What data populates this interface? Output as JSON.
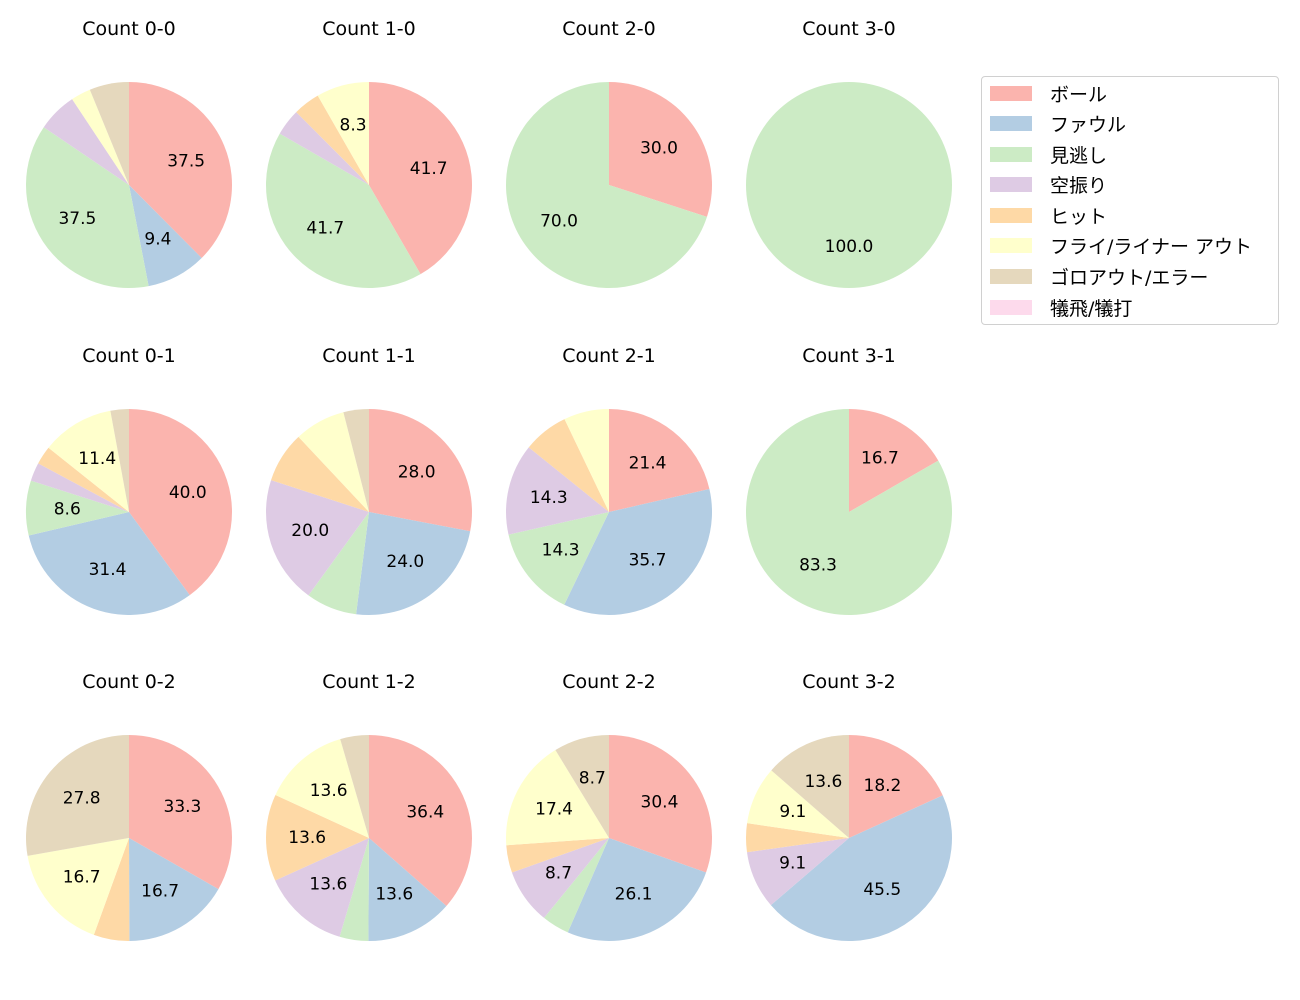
{
  "chart_data": {
    "type": "pie",
    "layout": {
      "rows": 3,
      "cols": 4,
      "legend_position": "upper right, outside"
    },
    "legend": [
      {
        "label": "ボール",
        "color": "#fbb4ae"
      },
      {
        "label": "ファウル",
        "color": "#b3cde3"
      },
      {
        "label": "見逃し",
        "color": "#ccebc5"
      },
      {
        "label": "空振り",
        "color": "#decbe4"
      },
      {
        "label": "ヒット",
        "color": "#fed9a6"
      },
      {
        "label": "フライ/ライナー アウト",
        "color": "#ffffcc"
      },
      {
        "label": "ゴロアウト/エラー",
        "color": "#e5d8bd"
      },
      {
        "label": "犠飛/犠打",
        "color": "#fddaec"
      }
    ],
    "categories": [
      "ボール",
      "ファウル",
      "見逃し",
      "空振り",
      "ヒット",
      "フライ/ライナー アウト",
      "ゴロアウト/エラー",
      "犠飛/犠打"
    ],
    "charts": [
      {
        "title": "Count 0-0",
        "values": [
          37.5,
          9.4,
          37.5,
          6.2,
          0,
          3.1,
          6.2,
          0
        ],
        "labels": [
          "37.5",
          "9.4",
          "37.5",
          "",
          "",
          "",
          "",
          ""
        ]
      },
      {
        "title": "Count 1-0",
        "values": [
          41.7,
          0,
          41.7,
          4.2,
          4.2,
          8.3,
          0,
          0
        ],
        "labels": [
          "41.7",
          "",
          "41.7",
          "",
          "",
          "8.3",
          "",
          ""
        ]
      },
      {
        "title": "Count 2-0",
        "values": [
          30.0,
          0,
          70.0,
          0,
          0,
          0,
          0,
          0
        ],
        "labels": [
          "30.0",
          "",
          "70.0",
          "",
          "",
          "",
          "",
          ""
        ]
      },
      {
        "title": "Count 3-0",
        "values": [
          0,
          0,
          100.0,
          0,
          0,
          0,
          0,
          0
        ],
        "labels": [
          "",
          "",
          "100.0",
          "",
          "",
          "",
          "",
          ""
        ]
      },
      {
        "title": "Count 0-1",
        "values": [
          40.0,
          31.4,
          8.6,
          2.9,
          2.9,
          11.4,
          2.9,
          0
        ],
        "labels": [
          "40.0",
          "31.4",
          "8.6",
          "",
          "",
          "11.4",
          "",
          ""
        ]
      },
      {
        "title": "Count 1-1",
        "values": [
          28.0,
          24.0,
          8.0,
          20.0,
          8.0,
          8.0,
          4.0,
          0
        ],
        "labels": [
          "28.0",
          "24.0",
          "",
          "20.0",
          "",
          "",
          "",
          ""
        ]
      },
      {
        "title": "Count 2-1",
        "values": [
          21.4,
          35.7,
          14.3,
          14.3,
          7.1,
          7.1,
          0,
          0
        ],
        "labels": [
          "21.4",
          "35.7",
          "14.3",
          "14.3",
          "",
          "",
          "",
          ""
        ]
      },
      {
        "title": "Count 3-1",
        "values": [
          16.7,
          0,
          83.3,
          0,
          0,
          0,
          0,
          0
        ],
        "labels": [
          "16.7",
          "",
          "83.3",
          "",
          "",
          "",
          "",
          ""
        ]
      },
      {
        "title": "Count 0-2",
        "values": [
          33.3,
          16.7,
          0,
          0,
          5.6,
          16.7,
          27.8,
          0
        ],
        "labels": [
          "33.3",
          "16.7",
          "",
          "",
          "",
          "16.7",
          "27.8",
          ""
        ]
      },
      {
        "title": "Count 1-2",
        "values": [
          36.4,
          13.6,
          4.5,
          13.6,
          13.6,
          13.6,
          4.5,
          0
        ],
        "labels": [
          "36.4",
          "13.6",
          "",
          "13.6",
          "13.6",
          "13.6",
          "",
          ""
        ]
      },
      {
        "title": "Count 2-2",
        "values": [
          30.4,
          26.1,
          4.3,
          8.7,
          4.3,
          17.4,
          8.7,
          0
        ],
        "labels": [
          "30.4",
          "26.1",
          "",
          "8.7",
          "",
          "17.4",
          "8.7",
          ""
        ]
      },
      {
        "title": "Count 3-2",
        "values": [
          18.2,
          45.5,
          0,
          9.1,
          4.5,
          9.1,
          13.6,
          0
        ],
        "labels": [
          "18.2",
          "45.5",
          "",
          "9.1",
          "",
          "9.1",
          "13.6",
          ""
        ]
      }
    ]
  }
}
